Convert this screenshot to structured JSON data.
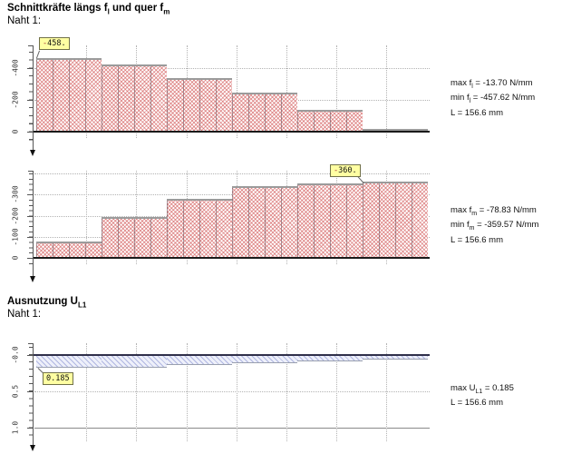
{
  "sections": {
    "forces": {
      "title_pre": "Schnittkräfte längs f",
      "title_sub1": "l",
      "title_mid": " und quer f",
      "title_sub2": "m",
      "subtitle": "Naht 1:"
    },
    "utilization": {
      "title_pre": "Ausnutzung U",
      "title_sub": "L1",
      "subtitle": "Naht 1:"
    }
  },
  "stats": {
    "fl": {
      "l1_pre": "max f",
      "l1_sub": "l",
      "l1_rest": " = -13.70 N/mm",
      "l2_pre": "min f",
      "l2_sub": "l",
      "l2_rest": " = -457.62 N/mm",
      "l3": "L = 156.6 mm"
    },
    "fm": {
      "l1_pre": "max f",
      "l1_sub": "m",
      "l1_rest": " = -78.83 N/mm",
      "l2_pre": "min f",
      "l2_sub": "m",
      "l2_rest": " = -359.57 N/mm",
      "l3": "L = 156.6 mm"
    },
    "ul1": {
      "l1_pre": "max U",
      "l1_sub": "L1",
      "l1_rest": " = 0.185",
      "l2": "L = 156.6 mm"
    }
  },
  "chart_data": [
    {
      "type": "area",
      "name": "fl",
      "quantity": "Schnittkraft längs fl",
      "unit": "N/mm",
      "length_mm": 156.6,
      "max": -13.7,
      "min": -457.62,
      "x_boundaries_mm": [
        0,
        26.1,
        52.2,
        78.3,
        104.4,
        130.5,
        156.6
      ],
      "values": [
        -457.62,
        -420,
        -337,
        -243,
        -134,
        -13.7
      ],
      "ylim": [
        0,
        -500
      ],
      "yticks": [
        {
          "v": 0,
          "label": "0"
        },
        {
          "v": -200,
          "label": "-200"
        },
        {
          "v": -400,
          "label": "-400"
        }
      ],
      "ygrid_dotted": [
        -200,
        -400
      ],
      "ygrid_solid": [],
      "xgrid_mm": [
        20,
        40,
        60,
        80,
        100,
        120,
        140
      ],
      "callout": {
        "text": "-458.",
        "value": -457.62
      }
    },
    {
      "type": "area",
      "name": "fm",
      "quantity": "Schnittkraft quer fm",
      "unit": "N/mm",
      "length_mm": 156.6,
      "max": -78.83,
      "min": -359.57,
      "x_boundaries_mm": [
        0,
        26.1,
        52.2,
        78.3,
        104.4,
        130.5,
        156.6
      ],
      "values": [
        -78.83,
        -192,
        -278,
        -338,
        -351,
        -359.57
      ],
      "ylim": [
        0,
        -430
      ],
      "yticks": [
        {
          "v": 0,
          "label": "0"
        },
        {
          "v": -100,
          "label": "-100"
        },
        {
          "v": -200,
          "label": "-200"
        },
        {
          "v": -300,
          "label": "-300"
        }
      ],
      "ygrid_dotted": [
        -100,
        -200,
        -300,
        -400
      ],
      "ygrid_solid": [],
      "xgrid_mm": [
        20,
        40,
        60,
        80,
        100,
        120,
        140
      ],
      "callout": {
        "text": "-360.",
        "value": -359.57
      }
    },
    {
      "type": "area",
      "name": "ul1",
      "quantity": "Ausnutzung UL1",
      "unit": "",
      "length_mm": 156.6,
      "max": 0.185,
      "x_boundaries_mm": [
        0,
        26.1,
        52.2,
        78.3,
        104.4,
        130.5,
        156.6
      ],
      "values": [
        0.185,
        0.183,
        0.14,
        0.115,
        0.09,
        0.066
      ],
      "ylim": [
        -0.1,
        1.25
      ],
      "yticks": [
        {
          "v": 0,
          "label": "-0.0"
        },
        {
          "v": 0.5,
          "label": "0.5"
        },
        {
          "v": 1.0,
          "label": "1.0"
        }
      ],
      "ygrid_dotted": [
        0.5
      ],
      "ygrid_solid": [
        1.0
      ],
      "xgrid_mm": [
        20,
        40,
        60,
        80,
        100,
        120,
        140
      ],
      "callout": {
        "text": "0.185",
        "value": 0.185
      }
    }
  ],
  "colors": {
    "force_hatch": "#cc4646",
    "util_hatch": "#7d87cd",
    "callout_bg": "#ffffa2",
    "grid": "#b3b3b3",
    "axis": "#555555",
    "baseline": "#1a1a1a",
    "util_zero_line": "#30304a",
    "limit_line": "#8a8a8a",
    "step_cap": "#9b9b9b"
  }
}
